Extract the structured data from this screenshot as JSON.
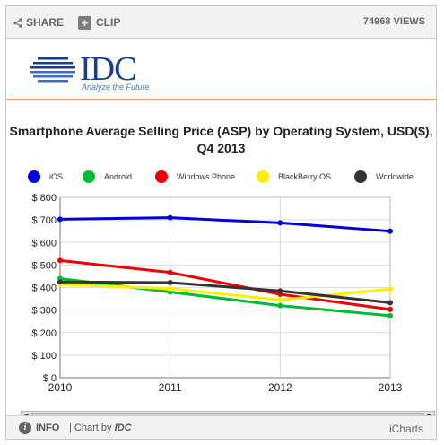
{
  "toolbar": {
    "share_label": "SHARE",
    "clip_label": "CLIP",
    "views_label": "74968 VIEWS"
  },
  "brand": {
    "logo_text": "IDC",
    "tagline": "Analyze the Future"
  },
  "footer": {
    "info_label": "INFO",
    "chart_by_label": "| Chart by",
    "chart_by_brand": "IDC",
    "provider_label": "iCharts"
  },
  "colors": {
    "ios": "#0000dd",
    "android": "#00bb33",
    "windows_phone": "#ee0000",
    "blackberry": "#ffee00",
    "worldwide": "#333333"
  },
  "chart_data": {
    "type": "line",
    "title": "Smartphone Average Selling Price (ASP) by Operating System, USD($), Q4 2013",
    "xlabel": "",
    "ylabel": "",
    "x": [
      "2010",
      "2011",
      "2012",
      "2013"
    ],
    "ylim": [
      0,
      800
    ],
    "y_ticks": [
      "$ 0",
      "$ 100",
      "$ 200",
      "$ 300",
      "$ 400",
      "$ 500",
      "$ 600",
      "$ 700",
      "$ 800"
    ],
    "grid": true,
    "legend_position": "top",
    "series": [
      {
        "name": "iOS",
        "values": [
          703,
          710,
          687,
          650
        ],
        "color": "#0000dd"
      },
      {
        "name": "Android",
        "values": [
          440,
          380,
          320,
          275
        ],
        "color": "#00bb33"
      },
      {
        "name": "Windows Phone",
        "values": [
          520,
          467,
          370,
          303
        ],
        "color": "#ee0000"
      },
      {
        "name": "BlackBerry OS",
        "values": [
          415,
          395,
          345,
          393
        ],
        "color": "#ffee00"
      },
      {
        "name": "Worldwide",
        "values": [
          425,
          422,
          385,
          333
        ],
        "color": "#333333"
      }
    ]
  }
}
